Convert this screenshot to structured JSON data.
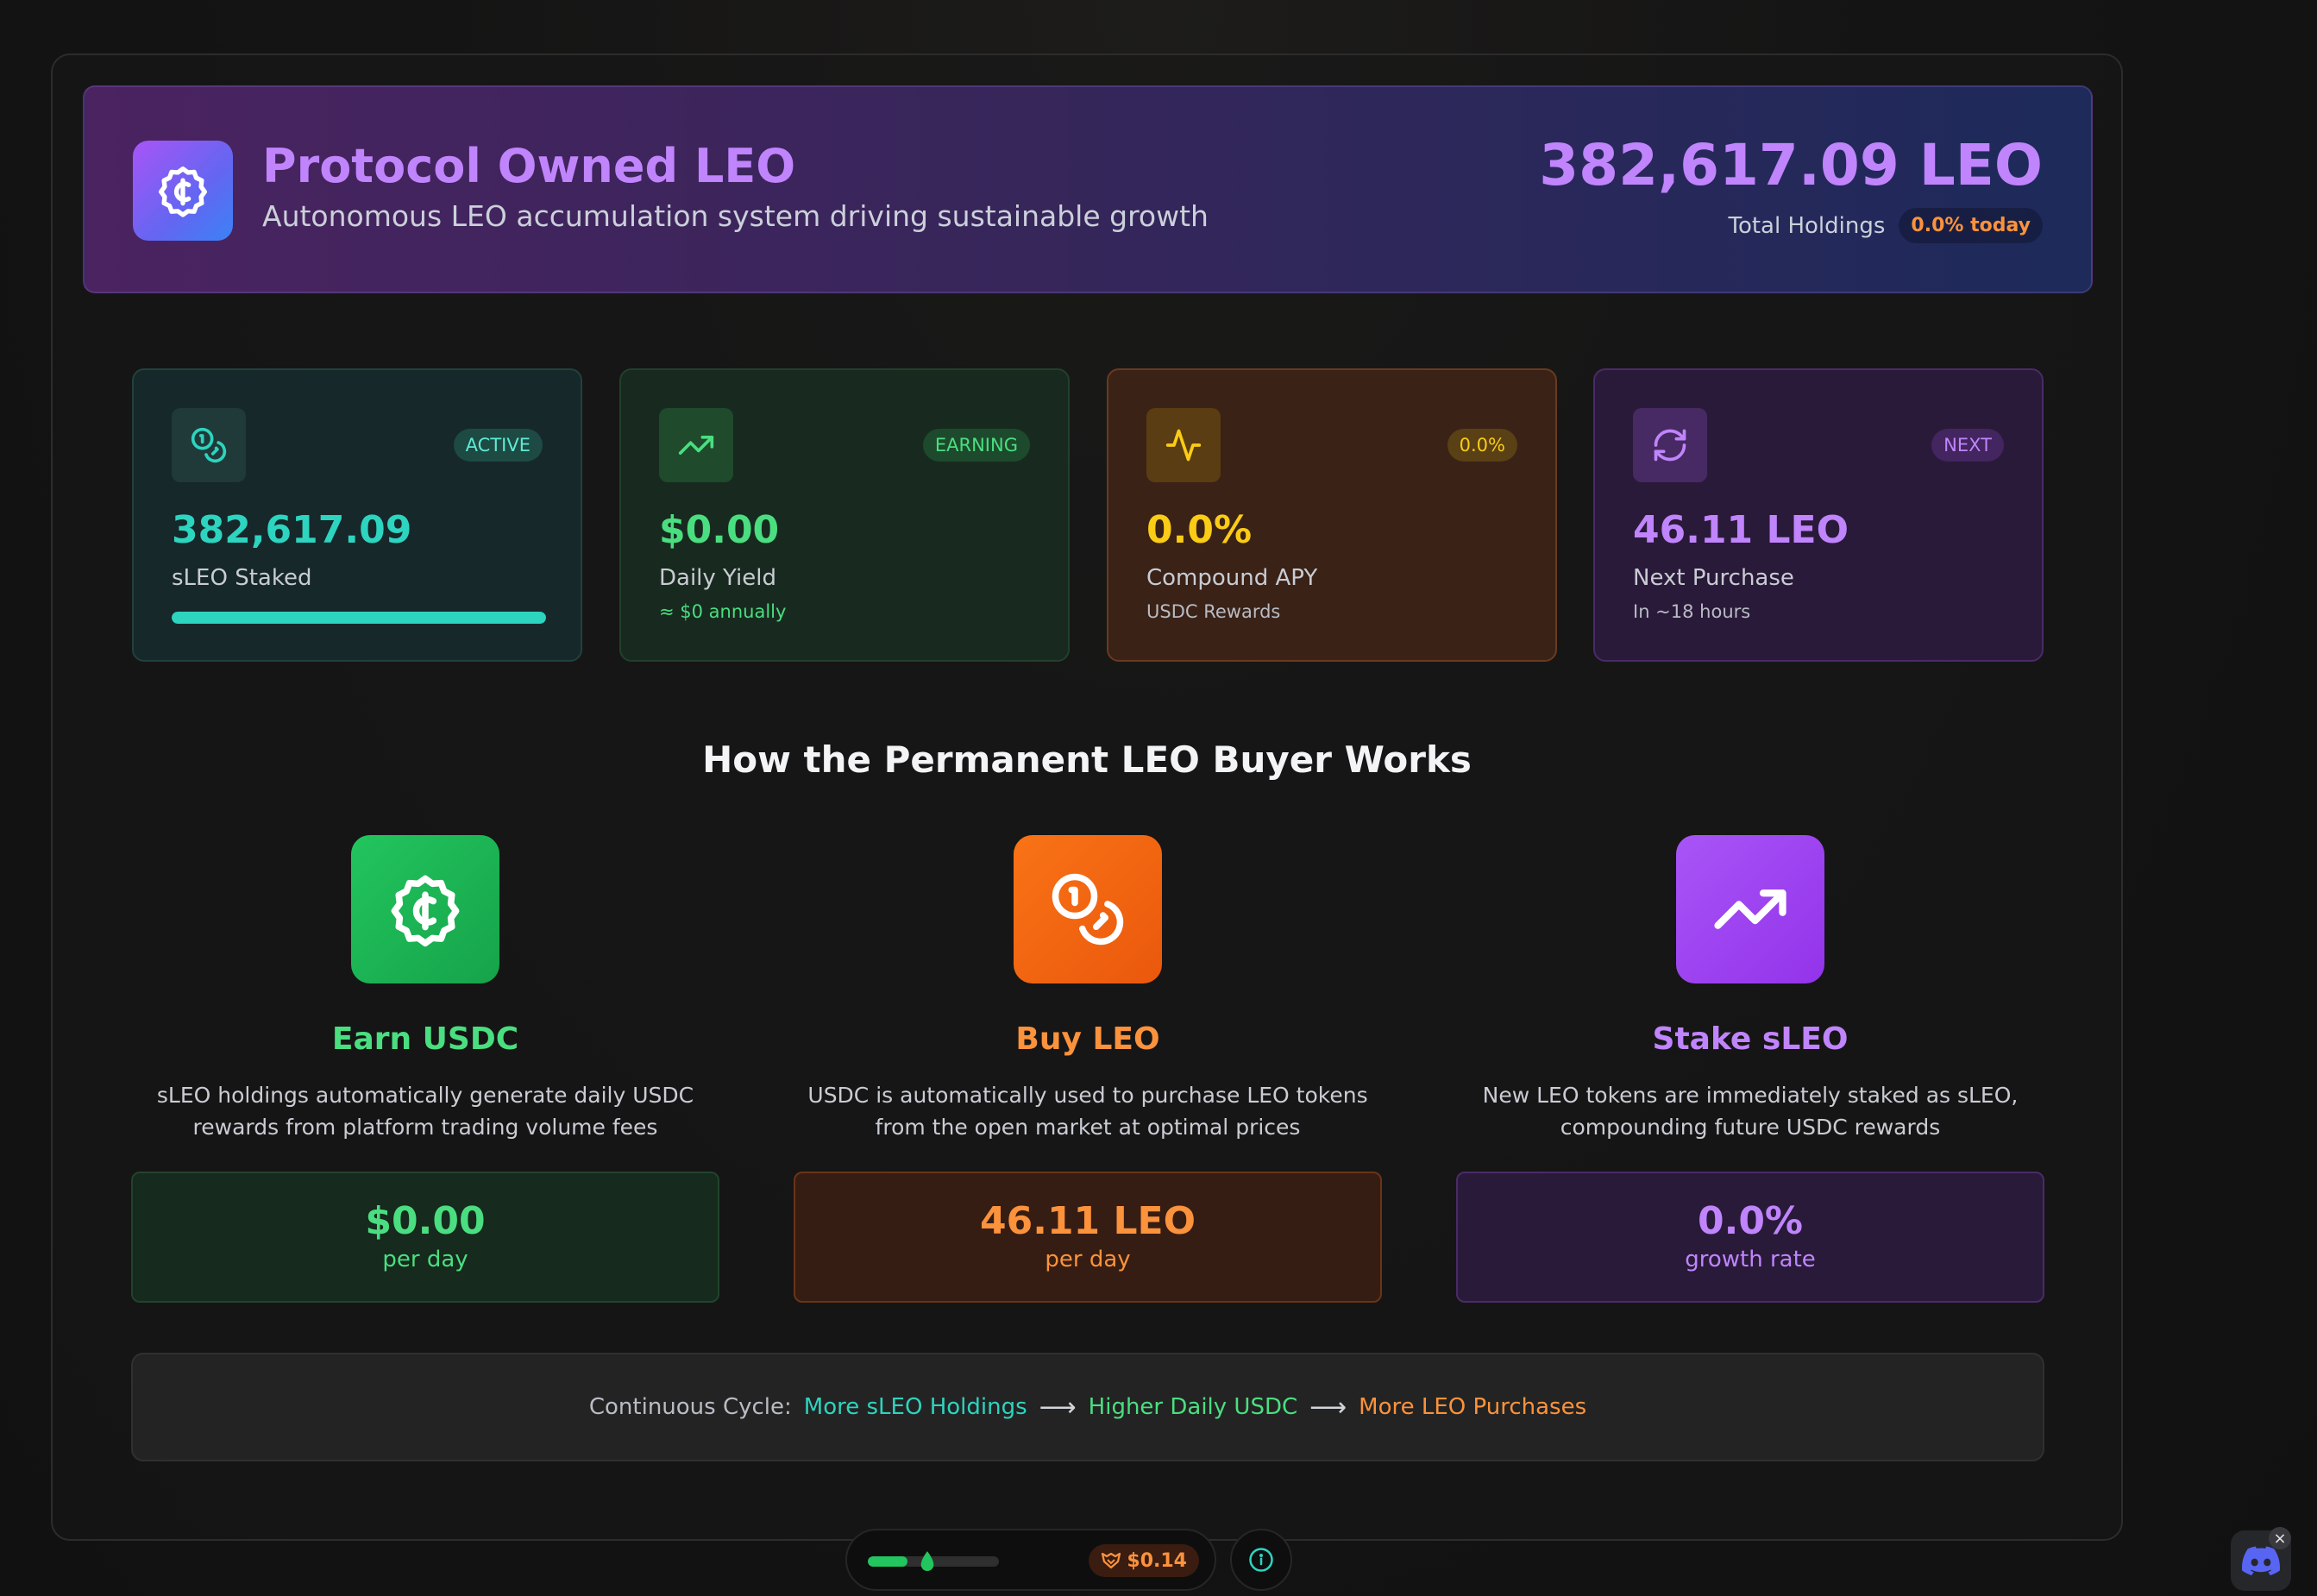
{
  "header": {
    "title": "Protocol Owned LEO",
    "subtitle": "Autonomous LEO accumulation system driving sustainable growth",
    "total": "382,617.09 LEO",
    "holdings_label": "Total Holdings",
    "today_change": "0.0% today",
    "icon": "usdc-coin-icon"
  },
  "stats": [
    {
      "icon": "coins-icon",
      "badge": "ACTIVE",
      "value": "382,617.09",
      "label": "sLEO Staked",
      "progress_percent": 100,
      "color": "#2dd4bf"
    },
    {
      "icon": "trending-up-icon",
      "badge": "EARNING",
      "value": "$0.00",
      "label": "Daily Yield",
      "sub": "≈ $0 annually",
      "color": "#4ade80"
    },
    {
      "icon": "activity-icon",
      "badge": "0.0%",
      "value": "0.0%",
      "label": "Compound APY",
      "sub": "USDC Rewards",
      "color": "#facc15"
    },
    {
      "icon": "refresh-icon",
      "badge": "NEXT",
      "value": "46.11 LEO",
      "label": "Next Purchase",
      "sub": "In ~18 hours",
      "color": "#c084fc"
    }
  ],
  "how": {
    "title": "How the Permanent LEO Buyer Works",
    "steps": [
      {
        "icon": "usdc-coin-icon",
        "title": "Earn USDC",
        "desc_line1": "sLEO holdings automatically generate daily USDC",
        "desc_line2": "rewards from platform trading volume fees",
        "value": "$0.00",
        "unit": "per day",
        "color": "#4ade80"
      },
      {
        "icon": "coins-icon",
        "title": "Buy LEO",
        "desc_line1": "USDC is automatically used to purchase LEO tokens",
        "desc_line2": "from the open market at optimal prices",
        "value": "46.11 LEO",
        "unit": "per day",
        "color": "#fb923c"
      },
      {
        "icon": "trending-up-icon",
        "title": "Stake sLEO",
        "desc_line1": "New LEO tokens are immediately staked as sLEO,",
        "desc_line2": "compounding future USDC rewards",
        "value": "0.0%",
        "unit": "growth rate",
        "color": "#c084fc"
      }
    ]
  },
  "cycle": {
    "label": "Continuous Cycle:",
    "step1": "More sLEO Holdings",
    "step2": "Higher Daily USDC",
    "step3": "More LEO Purchases",
    "arrow": "⟶"
  },
  "dock": {
    "gas_level_percent": 30,
    "price": "$0.14",
    "price_icon": "leo-lion-icon",
    "info_icon": "info-icon"
  },
  "discord": {
    "icon": "discord-icon",
    "close": "×"
  }
}
